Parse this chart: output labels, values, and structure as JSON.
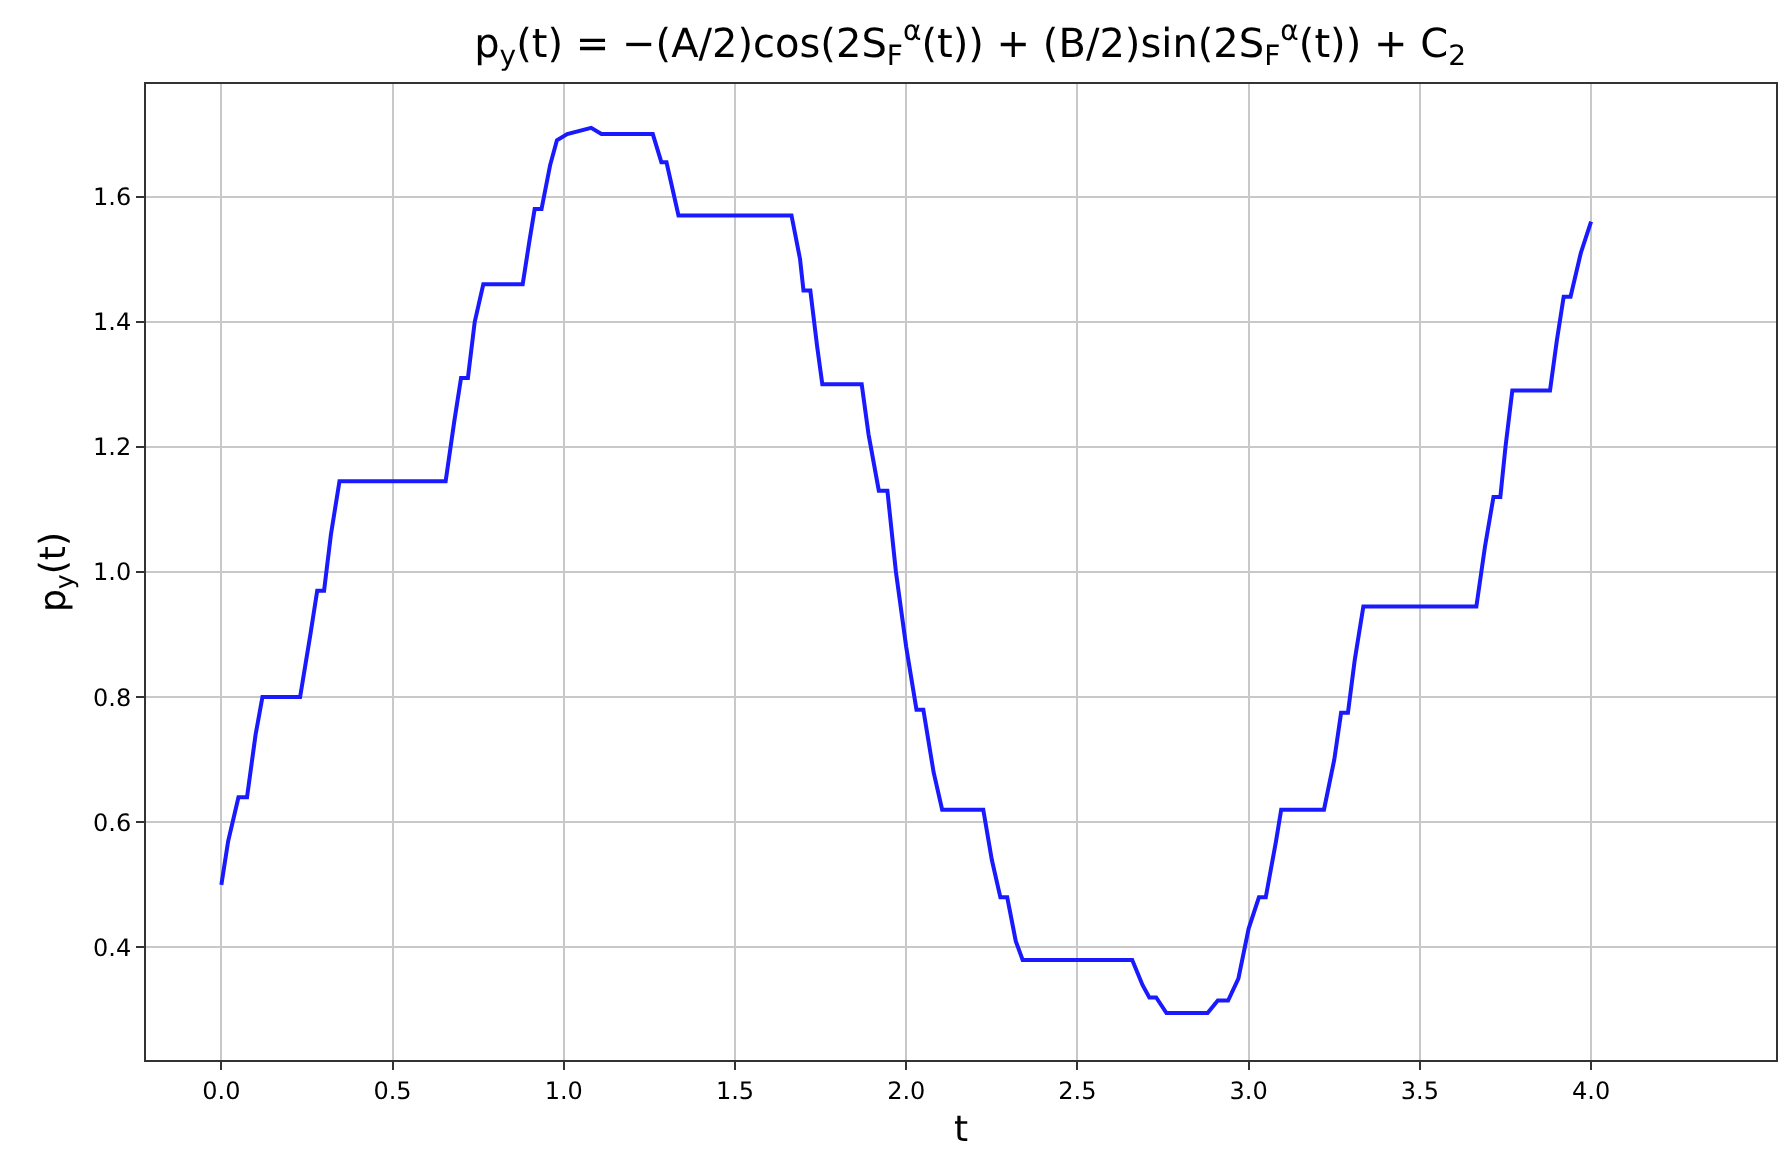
{
  "chart_data": {
    "type": "line",
    "title": "p$_{y}$(t) = −(A/2)cos(2S$_{F}$$^{α}$(t)) + (B/2)sin(2S$_{F}$$^{α}$(t)) + C$_{2}$",
    "xlabel": "t",
    "ylabel": "p$_{y}$(t)",
    "x": [
      0,
      0.02,
      0.05,
      0.075,
      0.1,
      0.12,
      0.23,
      0.26,
      0.28,
      0.3,
      0.32,
      0.345,
      0.655,
      0.68,
      0.7,
      0.72,
      0.74,
      0.765,
      0.88,
      0.9,
      0.915,
      0.935,
      0.96,
      0.98,
      1.01,
      1.08,
      1.11,
      1.26,
      1.285,
      1.3,
      1.335,
      1.665,
      1.69,
      1.7,
      1.72,
      1.74,
      1.755,
      1.87,
      1.89,
      1.92,
      1.945,
      1.97,
      2.0,
      2.03,
      2.05,
      2.08,
      2.105,
      2.225,
      2.25,
      2.275,
      2.295,
      2.32,
      2.34,
      2.66,
      2.69,
      2.71,
      2.73,
      2.76,
      2.88,
      2.91,
      2.94,
      2.97,
      3.0,
      3.03,
      3.05,
      3.08,
      3.095,
      3.22,
      3.25,
      3.27,
      3.29,
      3.31,
      3.335,
      3.665,
      3.69,
      3.715,
      3.735,
      3.75,
      3.77,
      3.88,
      3.9,
      3.92,
      3.94,
      3.97,
      4.0
    ],
    "series": [
      {
        "color": "#1a1aff",
        "values": [
          0.5,
          0.57,
          0.64,
          0.64,
          0.74,
          0.8,
          0.8,
          0.9,
          0.97,
          0.97,
          1.06,
          1.145,
          1.145,
          1.24,
          1.31,
          1.31,
          1.4,
          1.46,
          1.46,
          1.53,
          1.58,
          1.58,
          1.65,
          1.69,
          1.7,
          1.71,
          1.7,
          1.7,
          1.655,
          1.655,
          1.57,
          1.57,
          1.5,
          1.45,
          1.45,
          1.36,
          1.3,
          1.3,
          1.22,
          1.13,
          1.13,
          1.0,
          0.88,
          0.78,
          0.78,
          0.68,
          0.62,
          0.62,
          0.54,
          0.48,
          0.48,
          0.41,
          0.38,
          0.38,
          0.34,
          0.32,
          0.32,
          0.295,
          0.295,
          0.315,
          0.315,
          0.35,
          0.43,
          0.48,
          0.48,
          0.57,
          0.62,
          0.62,
          0.7,
          0.775,
          0.775,
          0.86,
          0.945,
          0.945,
          1.04,
          1.12,
          1.12,
          1.2,
          1.29,
          1.29,
          1.37,
          1.44,
          1.44,
          1.51,
          1.56
        ]
      }
    ],
    "xlim": [
      -0.22,
      4.54
    ],
    "ylim": [
      0.22,
      1.78
    ],
    "xticks": [
      {
        "value": 0,
        "label": "0.0"
      },
      0.5,
      {
        "value": 1,
        "label": "1.0"
      },
      1.5,
      {
        "value": 2,
        "label": "2.0"
      },
      2.5,
      {
        "value": 3,
        "label": "3.0"
      },
      3.5,
      {
        "value": 4,
        "label": "4.0"
      }
    ],
    "yticks": [
      0.4,
      0.6,
      0.8,
      {
        "value": 1,
        "label": "1.0"
      },
      1.2,
      1.4,
      1.6
    ],
    "grid": true,
    "marker": "none",
    "line_style": "solid"
  }
}
